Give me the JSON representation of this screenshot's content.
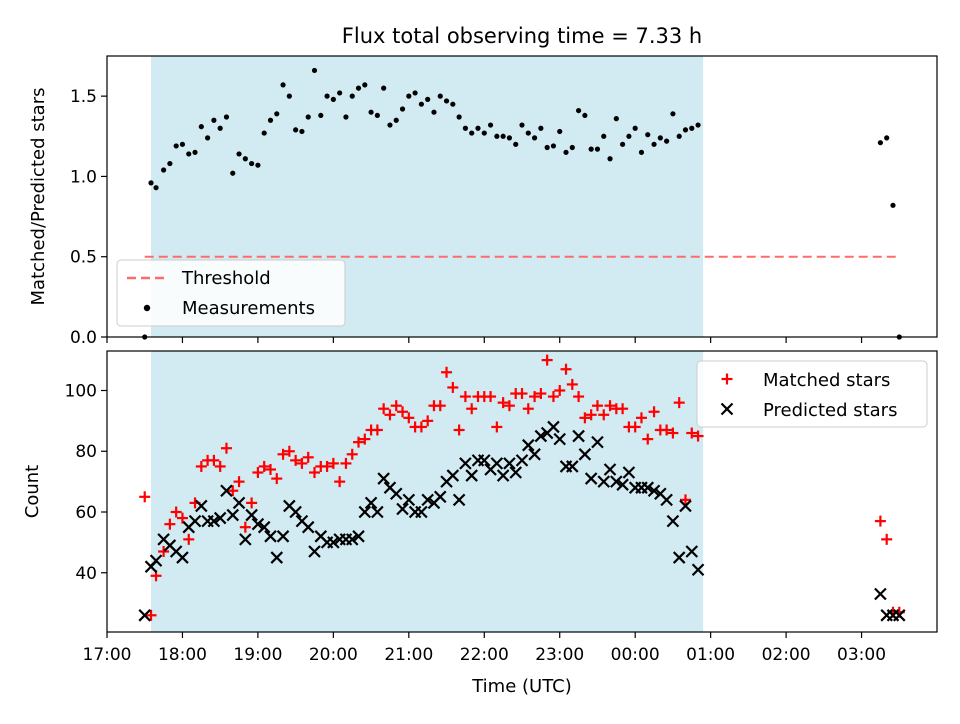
{
  "title": "Flux total observing time = 7.33 h",
  "colors": {
    "shade": "#add8e6",
    "threshold": "#ff6b6b",
    "measurement": "#000000",
    "matched": "#ff0000",
    "predicted": "#000000"
  },
  "chart_data": [
    {
      "type": "scatter",
      "ylabel": "Matched/Predicted stars",
      "ylim": [
        0,
        1.75
      ],
      "yticks": [
        0.0,
        0.5,
        1.0,
        1.5
      ],
      "ytick_labels": [
        "0.0",
        "0.5",
        "1.0",
        "1.5"
      ],
      "shaded_interval": [
        "17:35",
        "00:54"
      ],
      "legend": {
        "position": "lower-left",
        "entries": [
          "Threshold",
          "Measurements"
        ]
      },
      "threshold": {
        "name": "Threshold",
        "value": 0.5,
        "x": [
          "17:30",
          "03:30"
        ]
      },
      "series": [
        {
          "name": "Measurements",
          "x": [
            "17:30",
            "17:35",
            "17:39",
            "17:45",
            "17:50",
            "17:55",
            "18:00",
            "18:05",
            "18:10",
            "18:15",
            "18:20",
            "18:25",
            "18:30",
            "18:35",
            "18:40",
            "18:45",
            "18:50",
            "18:55",
            "19:00",
            "19:05",
            "19:10",
            "19:15",
            "19:20",
            "19:25",
            "19:30",
            "19:35",
            "19:40",
            "19:45",
            "19:50",
            "19:55",
            "20:00",
            "20:05",
            "20:10",
            "20:15",
            "20:20",
            "20:25",
            "20:30",
            "20:35",
            "20:40",
            "20:45",
            "20:50",
            "20:55",
            "21:00",
            "21:05",
            "21:10",
            "21:15",
            "21:20",
            "21:25",
            "21:30",
            "21:35",
            "21:40",
            "21:45",
            "21:50",
            "21:55",
            "22:00",
            "22:05",
            "22:10",
            "22:15",
            "22:20",
            "22:25",
            "22:30",
            "22:35",
            "22:40",
            "22:45",
            "22:50",
            "22:55",
            "23:00",
            "23:05",
            "23:10",
            "23:15",
            "23:20",
            "23:25",
            "23:30",
            "23:35",
            "23:40",
            "23:45",
            "23:50",
            "23:55",
            "00:00",
            "00:05",
            "00:10",
            "00:15",
            "00:20",
            "00:25",
            "00:30",
            "00:35",
            "00:40",
            "00:45",
            "00:50",
            "03:15",
            "03:20",
            "03:25",
            "03:30"
          ],
          "y": [
            0.0,
            0.96,
            0.93,
            1.04,
            1.08,
            1.19,
            1.2,
            1.14,
            1.15,
            1.31,
            1.24,
            1.35,
            1.3,
            1.37,
            1.02,
            1.14,
            1.11,
            1.08,
            1.07,
            1.27,
            1.35,
            1.39,
            1.57,
            1.5,
            1.29,
            1.28,
            1.37,
            1.66,
            1.38,
            1.5,
            1.48,
            1.52,
            1.37,
            1.5,
            1.55,
            1.57,
            1.4,
            1.38,
            1.55,
            1.32,
            1.35,
            1.42,
            1.5,
            1.52,
            1.45,
            1.48,
            1.4,
            1.5,
            1.47,
            1.45,
            1.37,
            1.3,
            1.27,
            1.3,
            1.27,
            1.32,
            1.25,
            1.25,
            1.24,
            1.2,
            1.32,
            1.27,
            1.24,
            1.3,
            1.18,
            1.19,
            1.28,
            1.15,
            1.18,
            1.41,
            1.38,
            1.17,
            1.17,
            1.25,
            1.11,
            1.36,
            1.2,
            1.25,
            1.3,
            1.15,
            1.26,
            1.2,
            1.24,
            1.22,
            1.39,
            1.25,
            1.29,
            1.3,
            1.32,
            1.21,
            1.24,
            0.82,
            0.0
          ]
        }
      ]
    },
    {
      "type": "scatter",
      "xlabel": "Time (UTC)",
      "ylabel": "Count",
      "ylim": [
        20.5,
        113
      ],
      "yticks": [
        40,
        60,
        80,
        100
      ],
      "ytick_labels": [
        "40",
        "60",
        "80",
        "100"
      ],
      "xlim": [
        "17:00",
        "04:00"
      ],
      "xticks": [
        "17:00",
        "18:00",
        "19:00",
        "20:00",
        "21:00",
        "22:00",
        "23:00",
        "00:00",
        "01:00",
        "02:00",
        "03:00"
      ],
      "xtick_labels": [
        "17:00",
        "18:00",
        "19:00",
        "20:00",
        "21:00",
        "22:00",
        "23:00",
        "00:00",
        "01:00",
        "02:00",
        "03:00"
      ],
      "shaded_interval": [
        "17:35",
        "00:54"
      ],
      "legend": {
        "position": "top-right",
        "entries": [
          "Matched stars",
          "Predicted stars"
        ]
      },
      "series": [
        {
          "name": "Matched stars",
          "x": [
            "17:30",
            "17:35",
            "17:39",
            "17:45",
            "17:50",
            "17:55",
            "18:00",
            "18:05",
            "18:10",
            "18:15",
            "18:20",
            "18:25",
            "18:30",
            "18:35",
            "18:40",
            "18:45",
            "18:50",
            "18:55",
            "19:00",
            "19:05",
            "19:10",
            "19:15",
            "19:20",
            "19:25",
            "19:30",
            "19:35",
            "19:40",
            "19:45",
            "19:50",
            "19:55",
            "20:00",
            "20:05",
            "20:10",
            "20:15",
            "20:20",
            "20:25",
            "20:30",
            "20:35",
            "20:40",
            "20:45",
            "20:50",
            "20:55",
            "21:00",
            "21:05",
            "21:10",
            "21:15",
            "21:20",
            "21:25",
            "21:30",
            "21:35",
            "21:40",
            "21:45",
            "21:50",
            "21:55",
            "22:00",
            "22:05",
            "22:10",
            "22:15",
            "22:20",
            "22:25",
            "22:30",
            "22:35",
            "22:40",
            "22:45",
            "22:50",
            "22:55",
            "23:00",
            "23:05",
            "23:10",
            "23:15",
            "23:20",
            "23:25",
            "23:30",
            "23:35",
            "23:40",
            "23:45",
            "23:50",
            "23:55",
            "00:00",
            "00:05",
            "00:10",
            "00:15",
            "00:20",
            "00:25",
            "00:30",
            "00:35",
            "00:40",
            "00:45",
            "00:50",
            "03:15",
            "03:20",
            "03:25",
            "03:30"
          ],
          "y": [
            65,
            26,
            39,
            47,
            56,
            60,
            58,
            51,
            63,
            75,
            77,
            77,
            75,
            81,
            67,
            70,
            55,
            63,
            73,
            75,
            74,
            71,
            79,
            80,
            77,
            76,
            78,
            73,
            75,
            75,
            76,
            70,
            76,
            79,
            83,
            84,
            87,
            87,
            94,
            92,
            95,
            93,
            91,
            88,
            88,
            90,
            95,
            95,
            106,
            101,
            87,
            98,
            94,
            98,
            98,
            98,
            88,
            96,
            95,
            99,
            99,
            94,
            98,
            99,
            110,
            98,
            100,
            107,
            102,
            98,
            91,
            92,
            95,
            92,
            95,
            94,
            94,
            88,
            88,
            91,
            84,
            93,
            87,
            87,
            86,
            96,
            64,
            86,
            85,
            57,
            51,
            27,
            27
          ]
        },
        {
          "name": "Predicted stars",
          "x": [
            "17:30",
            "17:35",
            "17:39",
            "17:45",
            "17:50",
            "17:55",
            "18:00",
            "18:05",
            "18:10",
            "18:15",
            "18:20",
            "18:25",
            "18:30",
            "18:35",
            "18:40",
            "18:45",
            "18:50",
            "18:55",
            "19:00",
            "19:05",
            "19:10",
            "19:15",
            "19:20",
            "19:25",
            "19:30",
            "19:35",
            "19:40",
            "19:45",
            "19:50",
            "19:55",
            "20:00",
            "20:05",
            "20:10",
            "20:15",
            "20:20",
            "20:25",
            "20:30",
            "20:35",
            "20:40",
            "20:45",
            "20:50",
            "20:55",
            "21:00",
            "21:05",
            "21:10",
            "21:15",
            "21:20",
            "21:25",
            "21:30",
            "21:35",
            "21:40",
            "21:45",
            "21:50",
            "21:55",
            "22:00",
            "22:05",
            "22:10",
            "22:15",
            "22:20",
            "22:25",
            "22:30",
            "22:35",
            "22:40",
            "22:45",
            "22:50",
            "22:55",
            "23:00",
            "23:05",
            "23:10",
            "23:15",
            "23:20",
            "23:25",
            "23:30",
            "23:35",
            "23:40",
            "23:45",
            "23:50",
            "23:55",
            "00:00",
            "00:05",
            "00:10",
            "00:15",
            "00:20",
            "00:25",
            "00:30",
            "00:35",
            "00:40",
            "00:45",
            "00:50",
            "03:15",
            "03:20",
            "03:25",
            "03:30"
          ],
          "y": [
            26,
            42,
            44,
            51,
            49,
            47,
            45,
            55,
            57,
            62,
            57,
            57,
            58,
            67,
            59,
            63,
            51,
            59,
            56,
            55,
            52,
            45,
            52,
            62,
            60,
            57,
            55,
            47,
            52,
            50,
            50,
            51,
            51,
            51,
            52,
            60,
            63,
            60,
            71,
            68,
            66,
            61,
            64,
            60,
            60,
            64,
            63,
            65,
            70,
            72,
            64,
            76,
            72,
            77,
            77,
            74,
            76,
            72,
            76,
            73,
            77,
            82,
            79,
            85,
            86,
            88,
            84,
            75,
            75,
            85,
            79,
            71,
            83,
            70,
            74,
            70,
            69,
            73,
            68,
            68,
            68,
            67,
            66,
            64,
            57,
            45,
            62,
            47,
            41,
            33,
            26,
            26,
            26
          ]
        }
      ]
    }
  ]
}
